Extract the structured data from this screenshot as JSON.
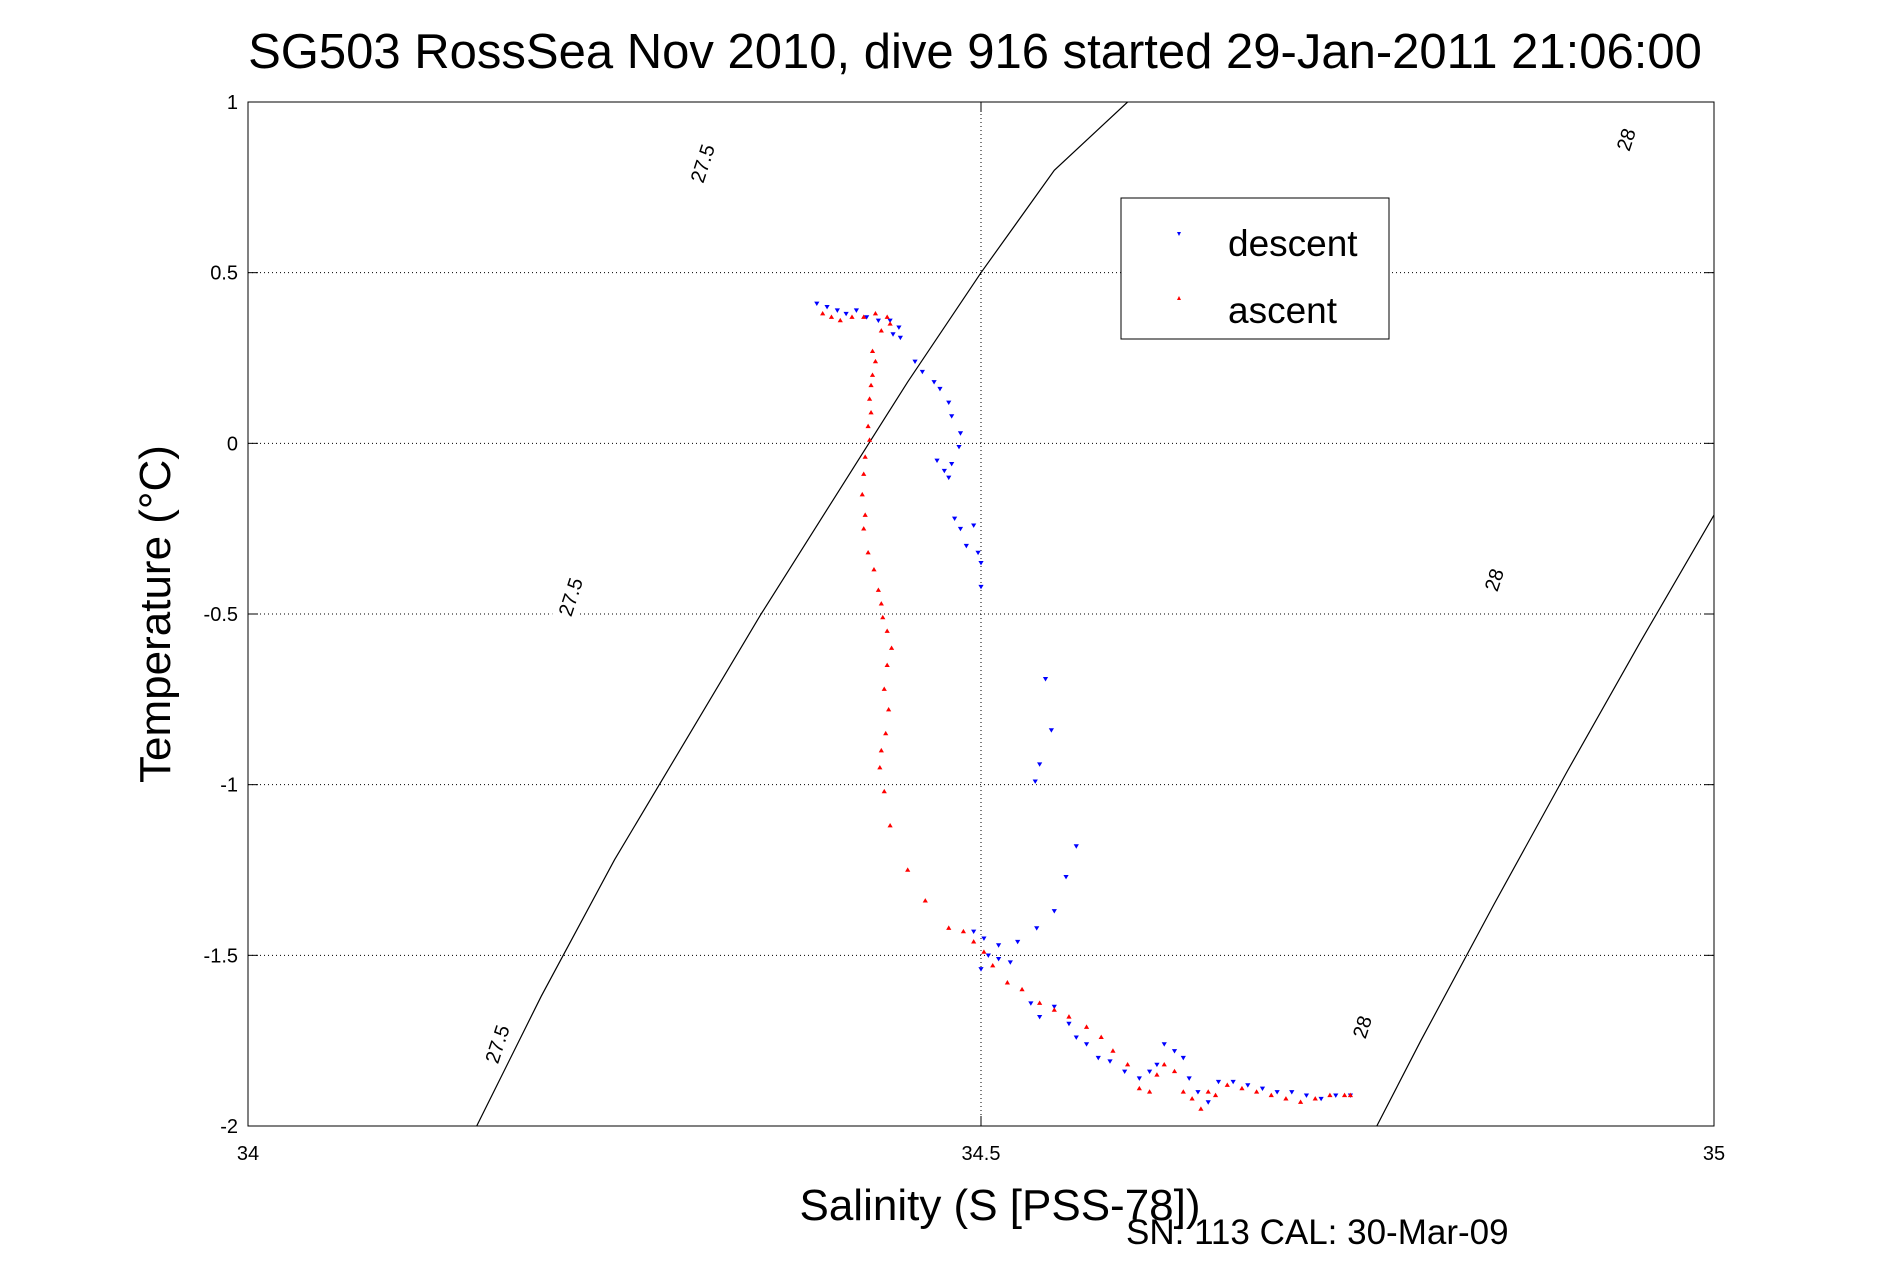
{
  "chart_data": {
    "type": "scatter",
    "title": "SG503 RossSea Nov 2010, dive 916 started 29-Jan-2011 21:06:00",
    "xlabel": "Salinity (S [PSS-78])",
    "ylabel": "Temperature (°C)",
    "xlim": [
      34,
      35
    ],
    "ylim": [
      -2,
      1
    ],
    "xticks": [
      "34",
      "34.5",
      "35"
    ],
    "yticks": [
      "1",
      "0.5",
      "0",
      "-0.5",
      "-1",
      "-1.5",
      "-2"
    ],
    "grid": true,
    "legend_position": "top-right",
    "footer": "SN: 113  CAL: 30-Mar-09",
    "contours": [
      {
        "label": "27.5",
        "points": [
          [
            34.156,
            -2.0
          ],
          [
            34.2,
            -1.62
          ],
          [
            34.25,
            -1.22
          ],
          [
            34.3,
            -0.86
          ],
          [
            34.35,
            -0.5
          ],
          [
            34.4,
            -0.16
          ],
          [
            34.45,
            0.18
          ],
          [
            34.5,
            0.5
          ],
          [
            34.55,
            0.8
          ],
          [
            34.6,
            1.0
          ]
        ]
      },
      {
        "label": "28",
        "points": [
          [
            34.77,
            -2.0
          ],
          [
            34.8,
            -1.75
          ],
          [
            34.85,
            -1.35
          ],
          [
            34.9,
            -0.96
          ],
          [
            34.95,
            -0.58
          ],
          [
            35.0,
            -0.21
          ],
          [
            35.05,
            0.15
          ],
          [
            35.1,
            0.5
          ],
          [
            35.15,
            0.82
          ],
          [
            35.2,
            1.0
          ]
        ]
      }
    ],
    "contour_labels": [
      {
        "text": "27.5",
        "x": 34.31,
        "y": 0.82
      },
      {
        "text": "27.5",
        "x": 34.22,
        "y": -0.45
      },
      {
        "text": "27.5",
        "x": 34.17,
        "y": -1.76
      },
      {
        "text": "28",
        "x": 34.94,
        "y": 0.89
      },
      {
        "text": "28",
        "x": 34.85,
        "y": -0.4
      },
      {
        "text": "28",
        "x": 34.76,
        "y": -1.71
      }
    ],
    "series": [
      {
        "name": "descent",
        "color": "#0000ff",
        "marker": "triangle-down",
        "points": [
          [
            34.388,
            0.41
          ],
          [
            34.395,
            0.4
          ],
          [
            34.402,
            0.39
          ],
          [
            34.408,
            0.38
          ],
          [
            34.415,
            0.39
          ],
          [
            34.422,
            0.37
          ],
          [
            34.43,
            0.36
          ],
          [
            34.438,
            0.36
          ],
          [
            34.444,
            0.34
          ],
          [
            34.445,
            0.31
          ],
          [
            34.44,
            0.32
          ],
          [
            34.455,
            0.24
          ],
          [
            34.46,
            0.21
          ],
          [
            34.468,
            0.18
          ],
          [
            34.472,
            0.16
          ],
          [
            34.478,
            0.12
          ],
          [
            34.48,
            0.08
          ],
          [
            34.486,
            0.03
          ],
          [
            34.485,
            -0.01
          ],
          [
            34.47,
            -0.05
          ],
          [
            34.475,
            -0.08
          ],
          [
            34.48,
            -0.06
          ],
          [
            34.478,
            -0.1
          ],
          [
            34.482,
            -0.22
          ],
          [
            34.486,
            -0.25
          ],
          [
            34.49,
            -0.3
          ],
          [
            34.495,
            -0.24
          ],
          [
            34.498,
            -0.32
          ],
          [
            34.5,
            -0.35
          ],
          [
            34.5,
            -0.42
          ],
          [
            34.544,
            -0.69
          ],
          [
            34.548,
            -0.84
          ],
          [
            34.54,
            -0.94
          ],
          [
            34.537,
            -0.99
          ],
          [
            34.565,
            -1.18
          ],
          [
            34.558,
            -1.27
          ],
          [
            34.55,
            -1.37
          ],
          [
            34.538,
            -1.42
          ],
          [
            34.525,
            -1.46
          ],
          [
            34.512,
            -1.47
          ],
          [
            34.502,
            -1.45
          ],
          [
            34.495,
            -1.43
          ],
          [
            34.505,
            -1.5
          ],
          [
            34.512,
            -1.51
          ],
          [
            34.52,
            -1.52
          ],
          [
            34.5,
            -1.54
          ],
          [
            34.534,
            -1.64
          ],
          [
            34.54,
            -1.68
          ],
          [
            34.55,
            -1.65
          ],
          [
            34.56,
            -1.7
          ],
          [
            34.565,
            -1.74
          ],
          [
            34.572,
            -1.76
          ],
          [
            34.58,
            -1.8
          ],
          [
            34.588,
            -1.81
          ],
          [
            34.598,
            -1.84
          ],
          [
            34.608,
            -1.86
          ],
          [
            34.615,
            -1.84
          ],
          [
            34.62,
            -1.82
          ],
          [
            34.625,
            -1.76
          ],
          [
            34.632,
            -1.78
          ],
          [
            34.638,
            -1.8
          ],
          [
            34.642,
            -1.86
          ],
          [
            34.648,
            -1.9
          ],
          [
            34.655,
            -1.93
          ],
          [
            34.662,
            -1.87
          ],
          [
            34.672,
            -1.87
          ],
          [
            34.682,
            -1.88
          ],
          [
            34.692,
            -1.89
          ],
          [
            34.702,
            -1.9
          ],
          [
            34.712,
            -1.9
          ],
          [
            34.722,
            -1.91
          ],
          [
            34.732,
            -1.92
          ],
          [
            34.742,
            -1.91
          ],
          [
            34.752,
            -1.91
          ]
        ]
      },
      {
        "name": "ascent",
        "color": "#ff0000",
        "marker": "triangle-up",
        "points": [
          [
            34.392,
            0.38
          ],
          [
            34.398,
            0.37
          ],
          [
            34.404,
            0.36
          ],
          [
            34.412,
            0.37
          ],
          [
            34.42,
            0.37
          ],
          [
            34.428,
            0.38
          ],
          [
            34.436,
            0.37
          ],
          [
            34.438,
            0.35
          ],
          [
            34.432,
            0.33
          ],
          [
            34.426,
            0.27
          ],
          [
            34.428,
            0.24
          ],
          [
            34.426,
            0.2
          ],
          [
            34.425,
            0.17
          ],
          [
            34.424,
            0.13
          ],
          [
            34.425,
            0.09
          ],
          [
            34.423,
            0.05
          ],
          [
            34.424,
            0.01
          ],
          [
            34.421,
            -0.04
          ],
          [
            34.42,
            -0.09
          ],
          [
            34.419,
            -0.15
          ],
          [
            34.421,
            -0.21
          ],
          [
            34.42,
            -0.25
          ],
          [
            34.423,
            -0.32
          ],
          [
            34.427,
            -0.37
          ],
          [
            34.43,
            -0.43
          ],
          [
            34.432,
            -0.47
          ],
          [
            34.433,
            -0.51
          ],
          [
            34.436,
            -0.55
          ],
          [
            34.439,
            -0.6
          ],
          [
            34.436,
            -0.65
          ],
          [
            34.434,
            -0.72
          ],
          [
            34.437,
            -0.78
          ],
          [
            34.435,
            -0.85
          ],
          [
            34.432,
            -0.9
          ],
          [
            34.431,
            -0.95
          ],
          [
            34.434,
            -1.02
          ],
          [
            34.438,
            -1.12
          ],
          [
            34.45,
            -1.25
          ],
          [
            34.462,
            -1.34
          ],
          [
            34.478,
            -1.42
          ],
          [
            34.488,
            -1.43
          ],
          [
            34.495,
            -1.46
          ],
          [
            34.502,
            -1.49
          ],
          [
            34.508,
            -1.53
          ],
          [
            34.518,
            -1.58
          ],
          [
            34.528,
            -1.6
          ],
          [
            34.54,
            -1.64
          ],
          [
            34.55,
            -1.66
          ],
          [
            34.56,
            -1.68
          ],
          [
            34.572,
            -1.71
          ],
          [
            34.582,
            -1.74
          ],
          [
            34.59,
            -1.78
          ],
          [
            34.6,
            -1.82
          ],
          [
            34.608,
            -1.89
          ],
          [
            34.615,
            -1.9
          ],
          [
            34.62,
            -1.85
          ],
          [
            34.625,
            -1.82
          ],
          [
            34.632,
            -1.84
          ],
          [
            34.638,
            -1.9
          ],
          [
            34.644,
            -1.92
          ],
          [
            34.65,
            -1.95
          ],
          [
            34.655,
            -1.9
          ],
          [
            34.66,
            -1.91
          ],
          [
            34.668,
            -1.88
          ],
          [
            34.678,
            -1.89
          ],
          [
            34.688,
            -1.9
          ],
          [
            34.698,
            -1.91
          ],
          [
            34.708,
            -1.92
          ],
          [
            34.718,
            -1.93
          ],
          [
            34.728,
            -1.92
          ],
          [
            34.738,
            -1.91
          ],
          [
            34.748,
            -1.91
          ],
          [
            34.752,
            -1.91
          ]
        ]
      }
    ]
  }
}
